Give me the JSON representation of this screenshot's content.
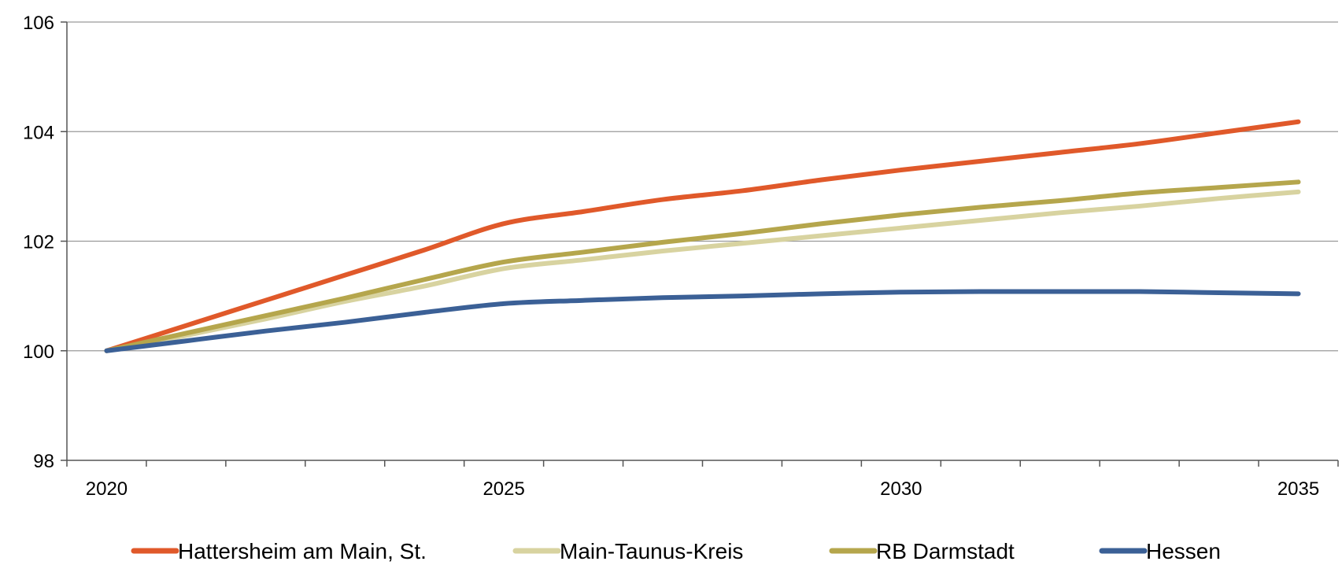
{
  "chart_data": {
    "type": "line",
    "title": "",
    "xlabel": "",
    "ylabel": "",
    "x": [
      2020,
      2021,
      2022,
      2023,
      2024,
      2025,
      2026,
      2027,
      2028,
      2029,
      2030,
      2031,
      2032,
      2033,
      2034,
      2035
    ],
    "xticks": [
      2020,
      2025,
      2030,
      2035
    ],
    "xlim": [
      2019.5,
      2035.5
    ],
    "ylim": [
      98,
      106
    ],
    "yticks": [
      98,
      100,
      102,
      104,
      106
    ],
    "grid": "horizontal",
    "legend_position": "bottom",
    "series": [
      {
        "name": "Hattersheim am Main, St.",
        "color": "#E0592A",
        "values": [
          100,
          100.46,
          100.92,
          101.38,
          101.84,
          102.32,
          102.54,
          102.76,
          102.92,
          103.12,
          103.3,
          103.46,
          103.62,
          103.78,
          103.98,
          104.18
        ]
      },
      {
        "name": "Main-Taunus-Kreis",
        "color": "#D8D3A0",
        "values": [
          100,
          100.28,
          100.58,
          100.9,
          101.18,
          101.5,
          101.66,
          101.82,
          101.96,
          102.1,
          102.24,
          102.38,
          102.52,
          102.64,
          102.78,
          102.9
        ]
      },
      {
        "name": "RB Darmstadt",
        "color": "#B5A64C",
        "values": [
          100,
          100.32,
          100.64,
          100.96,
          101.3,
          101.62,
          101.8,
          101.98,
          102.14,
          102.32,
          102.48,
          102.62,
          102.74,
          102.88,
          102.98,
          103.08
        ]
      },
      {
        "name": "Hessen",
        "color": "#3B6096",
        "values": [
          100,
          100.18,
          100.36,
          100.52,
          100.7,
          100.86,
          100.92,
          100.97,
          101.0,
          101.04,
          101.07,
          101.08,
          101.08,
          101.08,
          101.06,
          101.04
        ]
      }
    ]
  }
}
